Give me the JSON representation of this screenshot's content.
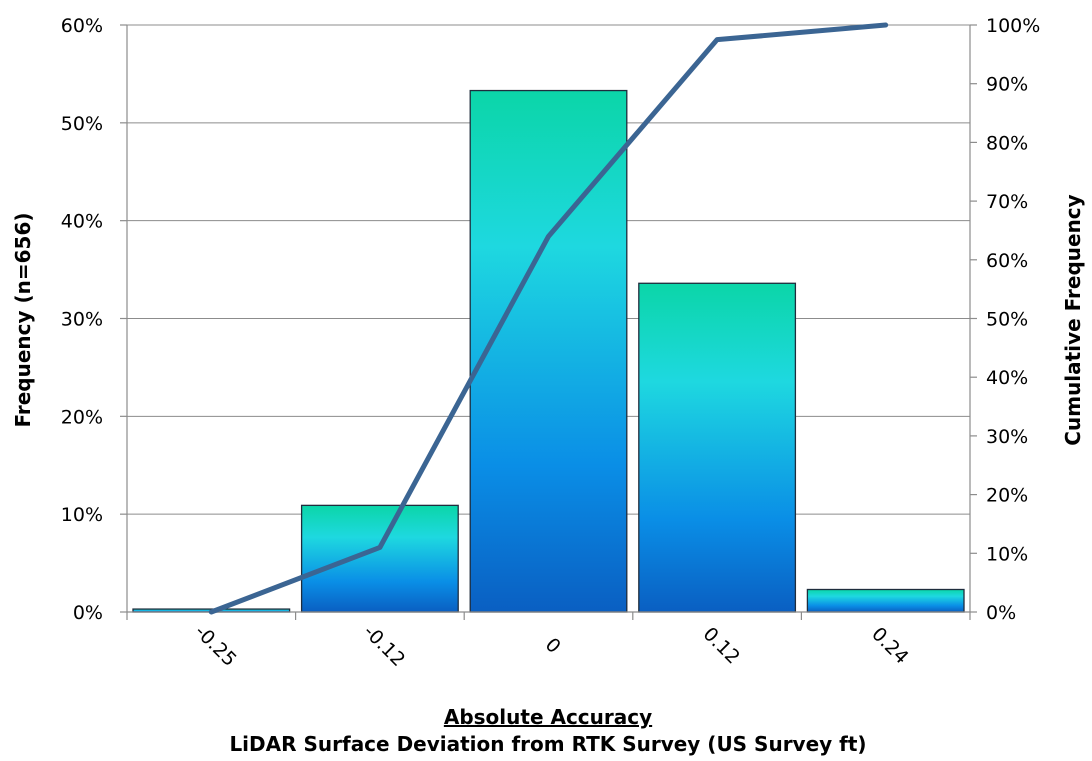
{
  "chart_data": {
    "type": "bar",
    "categories": [
      "-0.25",
      "-0.12",
      "0",
      "0.12",
      "0.24"
    ],
    "series": [
      {
        "type": "bar",
        "axis": "left",
        "values": [
          0.3,
          10.9,
          53.3,
          33.6,
          2.3
        ]
      },
      {
        "type": "line",
        "axis": "right",
        "values": [
          0,
          11,
          64,
          97.5,
          100
        ]
      }
    ],
    "y_left": {
      "label": "Frequency (n=656)",
      "ylim": [
        0,
        60
      ],
      "ticks": [
        0,
        10,
        20,
        30,
        40,
        50,
        60
      ],
      "tick_labels": [
        "0%",
        "10%",
        "20%",
        "30%",
        "40%",
        "50%",
        "60%"
      ]
    },
    "y_right": {
      "label": "Cumulative Frequency",
      "ylim": [
        0,
        100
      ],
      "ticks": [
        0,
        10,
        20,
        30,
        40,
        50,
        60,
        70,
        80,
        90,
        100
      ],
      "tick_labels": [
        "0%",
        "10%",
        "20%",
        "30%",
        "40%",
        "50%",
        "60%",
        "70%",
        "80%",
        "90%",
        "100%"
      ]
    },
    "xlabel_line1": "Absolute Accuracy",
    "xlabel_line2": "LiDAR Surface Deviation from RTK Survey (US Survey ft)",
    "grid": true,
    "legend": "none",
    "colors": {
      "bar_top": "#0bd6a8",
      "bar_mid": "#1ed8e0",
      "bar_low": "#0a8ee6",
      "bar_bottom": "#0a5fc2",
      "bar_outline": "#1f2d3d",
      "line": "#3b6593"
    }
  }
}
